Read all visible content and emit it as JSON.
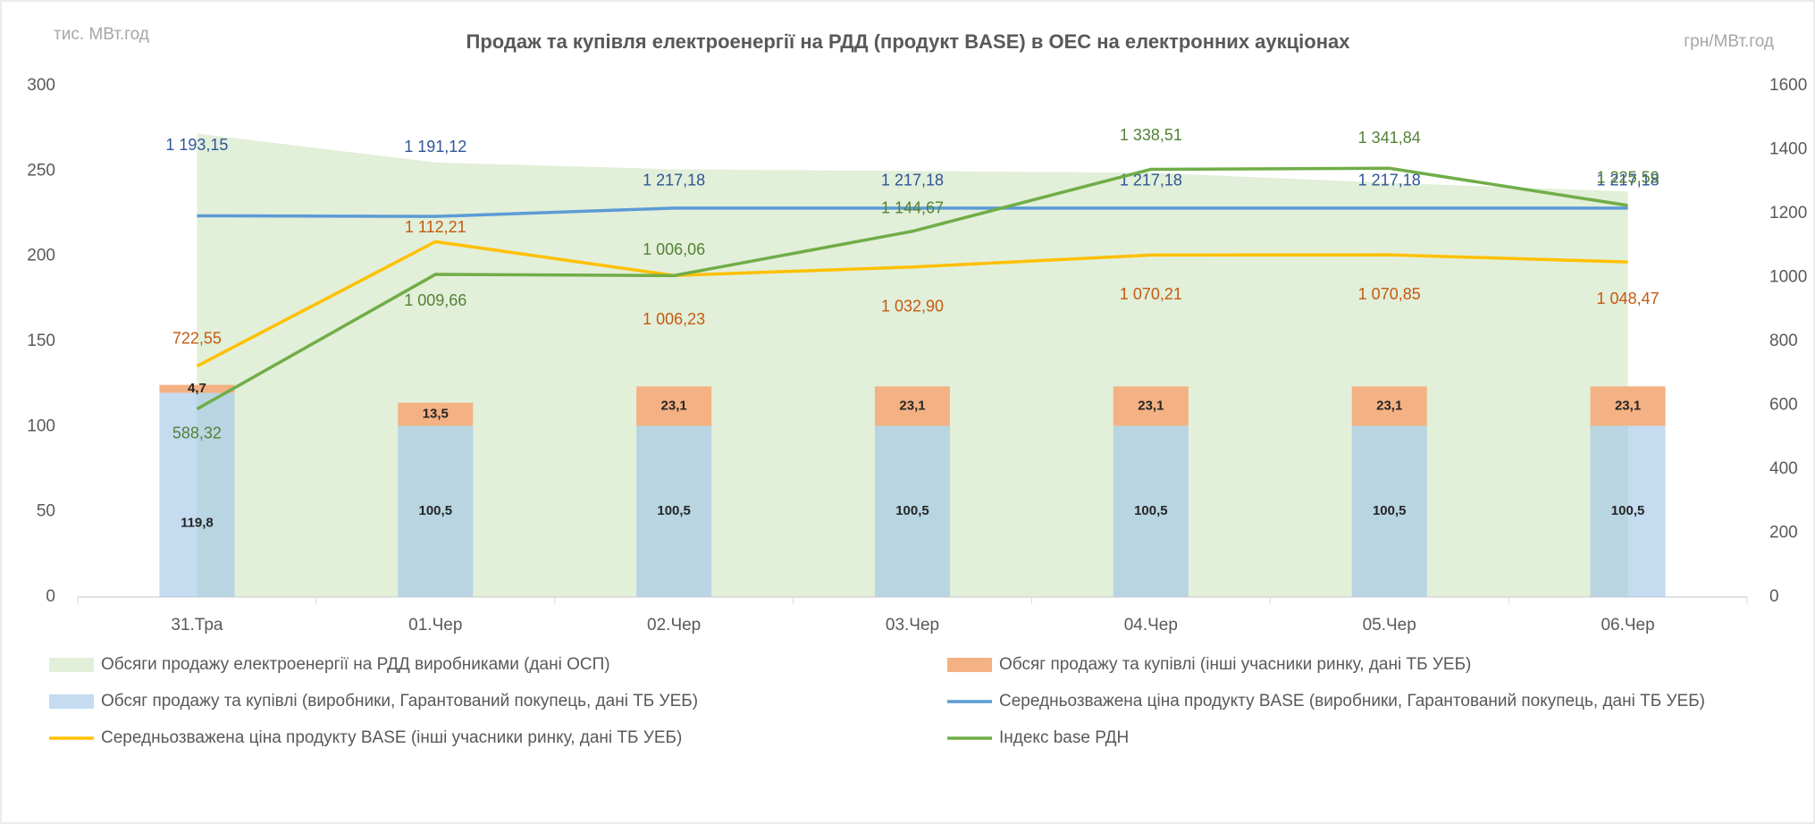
{
  "chart_data": {
    "type": "bar",
    "title": "Продаж та купівля електроенергії на РДД (продукт BASE) в ОЕС на електронних аукціонах",
    "y_axis_label": "тис. МВт.год",
    "y2_axis_label": "грн/МВт.год",
    "categories": [
      "31.Тра",
      "01.Чер",
      "02.Чер",
      "03.Чер",
      "04.Чер",
      "05.Чер",
      "06.Чер"
    ],
    "ylim": [
      0,
      300
    ],
    "yticks": [
      0,
      50,
      100,
      150,
      200,
      250,
      300
    ],
    "y2lim": [
      0,
      1600
    ],
    "y2ticks": [
      0,
      200,
      400,
      600,
      800,
      1000,
      1200,
      1400,
      1600
    ],
    "series": [
      {
        "name": "Обсяги продажу електроенергії на РДД виробниками (дані ОСП)",
        "type": "area",
        "color": "#e2efd9",
        "values": [
          272,
          255,
          251,
          250,
          249,
          243,
          238
        ]
      },
      {
        "name": "Обсяг продажу та купівлі (інші учасники ринку, дані ТБ УЕБ)",
        "type": "bar",
        "stack": 1,
        "color": "#f4b183",
        "values": [
          4.7,
          13.5,
          23.1,
          23.1,
          23.1,
          23.1,
          23.1
        ],
        "value_labels": [
          "4,7",
          "13,5",
          "23,1",
          "23,1",
          "23,1",
          "23,1",
          "23,1"
        ]
      },
      {
        "name": "Обсяг продажу та купівлі (виробники, Гарантований покупець, дані ТБ УЕБ)",
        "type": "bar",
        "stack": 0,
        "color": "#9dc3e6",
        "values": [
          119.8,
          100.5,
          100.5,
          100.5,
          100.5,
          100.5,
          100.5
        ],
        "value_labels": [
          "119,8",
          "100,5",
          "100,5",
          "100,5",
          "100,5",
          "100,5",
          "100,5"
        ]
      },
      {
        "name": "Середньозважена ціна продукту BASE (виробники, Гарантований покупець, дані ТБ УЕБ)",
        "type": "line",
        "axis": "y2",
        "color": "#5b9bd5",
        "label_color": "#2f5597",
        "values": [
          1193.15,
          1191.12,
          1217.18,
          1217.18,
          1217.18,
          1217.18,
          1217.18
        ],
        "value_labels": [
          "1 193,15",
          "1 191,12",
          "1 217,18",
          "1 217,18",
          "1 217,18",
          "1 217,18",
          "1 217,18"
        ]
      },
      {
        "name": "Середньозважена ціна продукту BASE (інші учасники ринку,  дані ТБ УЕБ)",
        "type": "line",
        "axis": "y2",
        "color": "#ffc000",
        "label_color": "#c55a11",
        "values": [
          722.55,
          1112.21,
          1006.23,
          1032.9,
          1070.21,
          1070.85,
          1048.47
        ],
        "value_labels": [
          "722,55",
          "1 112,21",
          "1 006,23",
          "1 032,90",
          "1 070,21",
          "1 070,85",
          "1 048,47"
        ]
      },
      {
        "name": "Індекс base РДН",
        "type": "line",
        "axis": "y2",
        "color": "#70ad47",
        "label_color": "#548235",
        "values": [
          588.32,
          1009.66,
          1006.06,
          1144.67,
          1338.51,
          1341.84,
          1225.59
        ],
        "value_labels": [
          "588,32",
          "1 009,66",
          "1 006,06",
          "1 144,67",
          "1 338,51",
          "1 341,84",
          "1 225,59"
        ]
      }
    ]
  }
}
